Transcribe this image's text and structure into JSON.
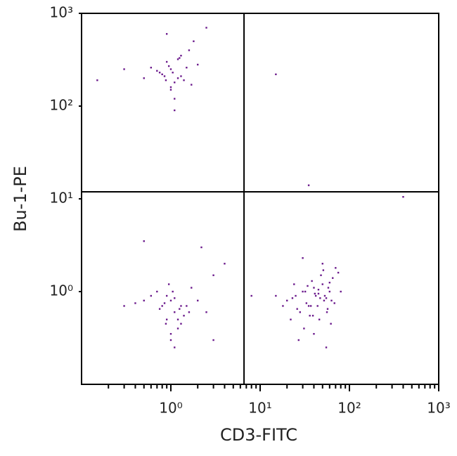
{
  "chart_data": {
    "type": "scatter",
    "xlabel": "CD3-FITC",
    "ylabel": "Bu-1-PE",
    "xscale": "log",
    "yscale": "log",
    "xlim": [
      0.1,
      1000
    ],
    "ylim": [
      0.1,
      1000
    ],
    "xticks": [
      {
        "value": 1,
        "label": "10⁰"
      },
      {
        "value": 10,
        "label": "10¹"
      },
      {
        "value": 100,
        "label": "10²"
      },
      {
        "value": 1000,
        "label": "10³"
      }
    ],
    "yticks": [
      {
        "value": 1,
        "label": "10⁰"
      },
      {
        "value": 10,
        "label": "10¹"
      },
      {
        "value": 100,
        "label": "10²"
      },
      {
        "value": 1000,
        "label": "10³"
      }
    ],
    "xminorticks": [
      0.2,
      0.3,
      0.4,
      0.5,
      0.6,
      0.7,
      0.8,
      0.9,
      2,
      3,
      4,
      5,
      6,
      7,
      8,
      9,
      20,
      30,
      40,
      50,
      60,
      70,
      80,
      90,
      200,
      300,
      400,
      500,
      600,
      700,
      800,
      900
    ],
    "gates": {
      "x": 6.6,
      "y": 11.9
    },
    "series": [
      {
        "color": "#6b1a8c",
        "x": [
          0.8,
          1.0,
          1.2,
          0.9,
          1.1,
          1.5,
          0.7,
          1.3,
          1.0,
          0.85,
          1.6,
          1.8,
          0.95,
          1.1,
          1.4,
          0.75,
          1.2,
          2.0,
          1.0,
          0.6,
          1.3,
          0.9,
          1.7,
          2.5,
          1.1,
          0.5,
          0.3,
          1.05,
          1.25,
          0.88,
          0.8,
          1.0,
          1.2,
          0.9,
          1.1,
          1.5,
          0.7,
          1.3,
          1.0,
          0.85,
          1.6,
          0.95,
          1.1,
          1.4,
          0.75,
          1.2,
          2.0,
          1.0,
          0.6,
          1.3,
          0.9,
          1.7,
          1.1,
          0.5,
          2.5,
          1.05,
          1.25,
          0.88,
          3.0,
          0.4,
          20,
          25,
          30,
          35,
          40,
          45,
          50,
          55,
          60,
          28,
          33,
          38,
          42,
          48,
          52,
          58,
          65,
          70,
          22,
          26,
          31,
          36,
          44,
          50,
          56,
          62,
          75,
          18,
          24,
          32,
          40,
          47,
          53,
          60,
          68,
          27,
          34,
          41,
          46,
          51,
          57,
          63,
          15,
          30,
          39,
          45,
          55,
          80,
          23,
          37,
          15,
          35,
          400,
          0.5,
          2.2,
          3,
          0.3,
          0.15,
          4,
          8
        ],
        "values": [
          220,
          250,
          200,
          300,
          180,
          260,
          240,
          350,
          150,
          210,
          400,
          500,
          270,
          120,
          190,
          230,
          320,
          280,
          160,
          260,
          210,
          600,
          170,
          700,
          90,
          200,
          250,
          230,
          330,
          190,
          0.7,
          0.8,
          0.5,
          0.9,
          0.6,
          0.7,
          1.0,
          0.45,
          0.35,
          0.75,
          0.6,
          1.2,
          0.85,
          0.55,
          0.65,
          0.4,
          0.8,
          0.3,
          0.9,
          0.7,
          0.5,
          1.1,
          0.25,
          0.8,
          0.6,
          1.0,
          0.65,
          0.45,
          1.5,
          0.75,
          0.8,
          0.9,
          1.0,
          0.7,
          1.1,
          0.95,
          1.2,
          0.85,
          1.0,
          0.6,
          0.75,
          1.3,
          0.9,
          1.5,
          0.8,
          1.1,
          1.4,
          1.8,
          0.5,
          0.65,
          0.4,
          0.55,
          0.7,
          2.0,
          0.6,
          0.45,
          1.6,
          0.7,
          1.2,
          1.0,
          0.35,
          0.85,
          0.9,
          1.25,
          0.75,
          0.3,
          1.15,
          0.95,
          0.5,
          1.7,
          0.65,
          0.8,
          0.9,
          2.3,
          0.55,
          1.05,
          0.25,
          1.0,
          0.85,
          0.7,
          220,
          14,
          10.5,
          3.5,
          3,
          0.3,
          0.7,
          190,
          2,
          0.9
        ]
      }
    ]
  }
}
